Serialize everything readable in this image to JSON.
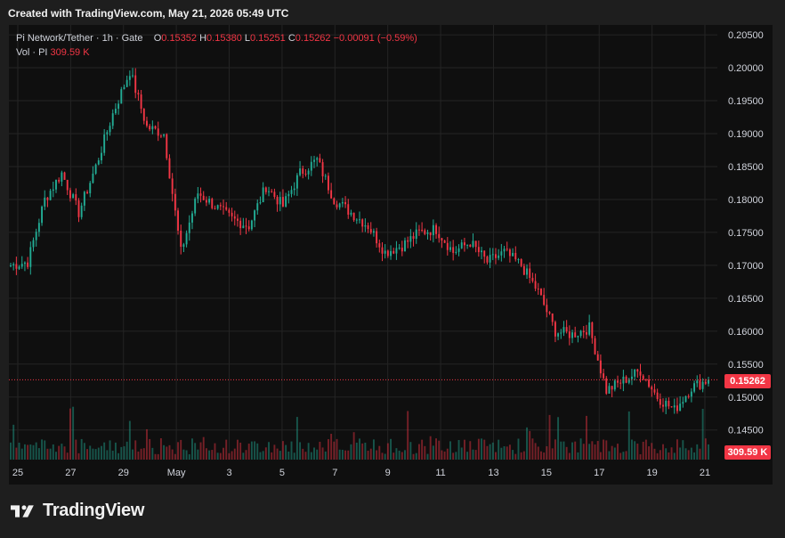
{
  "header": {
    "created_text": "Created with TradingView.com, May 21, 2026 05:49 UTC"
  },
  "legend": {
    "symbol_line": "Pi Network/Tether · 1h · Gate",
    "open_label": "O",
    "open_value": "0.15352",
    "high_label": "H",
    "high_value": "0.15380",
    "low_label": "L",
    "low_value": "0.15251",
    "close_label": "C",
    "close_value": "0.15262",
    "change": "−0.00091 (−0.59%)",
    "volume_label": "Vol · PI",
    "volume_value": "309.59 K"
  },
  "price_tag": "0.15262",
  "volume_tag": "309.59 K",
  "brand": {
    "name": "TradingView"
  },
  "colors": {
    "up": "#22ab94",
    "down": "#f23645",
    "grid": "#242424",
    "background": "#0f0f0f"
  },
  "chart_data": {
    "type": "candlestick",
    "title": "Pi Network/Tether · 1h · Gate",
    "ylim": [
      0.1405,
      0.2065
    ],
    "y_ticks": [
      "0.14500",
      "0.15000",
      "0.15500",
      "0.16000",
      "0.16500",
      "0.17000",
      "0.17500",
      "0.18000",
      "0.18500",
      "0.19000",
      "0.19500",
      "0.20000",
      "0.20500"
    ],
    "x_ticks": [
      "25",
      "27",
      "29",
      "May",
      "3",
      "5",
      "7",
      "9",
      "11",
      "13",
      "15",
      "17",
      "19",
      "21"
    ],
    "last_price": 0.15262,
    "price_series_approx": [
      {
        "t": "Apr 25",
        "close": 0.17
      },
      {
        "t": "Apr 26",
        "close": 0.1705
      },
      {
        "t": "Apr 26 12h",
        "close": 0.18
      },
      {
        "t": "Apr 27",
        "close": 0.184
      },
      {
        "t": "Apr 27 12h",
        "close": 0.178
      },
      {
        "t": "Apr 28",
        "close": 0.185
      },
      {
        "t": "Apr 28 12h",
        "close": 0.193
      },
      {
        "t": "Apr 29",
        "close": 0.1995
      },
      {
        "t": "Apr 29 12h",
        "close": 0.191
      },
      {
        "t": "Apr 30",
        "close": 0.19
      },
      {
        "t": "Apr 30 12h",
        "close": 0.172
      },
      {
        "t": "May 1",
        "close": 0.181
      },
      {
        "t": "May 2",
        "close": 0.179
      },
      {
        "t": "May 2 12h",
        "close": 0.177
      },
      {
        "t": "May 3",
        "close": 0.176
      },
      {
        "t": "May 4",
        "close": 0.182
      },
      {
        "t": "May 5",
        "close": 0.179
      },
      {
        "t": "May 6",
        "close": 0.184
      },
      {
        "t": "May 6 12h",
        "close": 0.186
      },
      {
        "t": "May 7",
        "close": 0.18
      },
      {
        "t": "May 7 12h",
        "close": 0.178
      },
      {
        "t": "May 8",
        "close": 0.176
      },
      {
        "t": "May 8 12h",
        "close": 0.172
      },
      {
        "t": "May 9",
        "close": 0.173
      },
      {
        "t": "May 10",
        "close": 0.175
      },
      {
        "t": "May 11",
        "close": 0.1755
      },
      {
        "t": "May 12",
        "close": 0.172
      },
      {
        "t": "May 13",
        "close": 0.1735
      },
      {
        "t": "May 14",
        "close": 0.1705
      },
      {
        "t": "May 15",
        "close": 0.172
      },
      {
        "t": "May 15 12h",
        "close": 0.17
      },
      {
        "t": "May 16",
        "close": 0.166
      },
      {
        "t": "May 16 12h",
        "close": 0.16
      },
      {
        "t": "May 17",
        "close": 0.1595
      },
      {
        "t": "May 17 12h",
        "close": 0.1605
      },
      {
        "t": "May 18",
        "close": 0.151
      },
      {
        "t": "May 18 12h",
        "close": 0.1525
      },
      {
        "t": "May 19",
        "close": 0.154
      },
      {
        "t": "May 19 12h",
        "close": 0.15
      },
      {
        "t": "May 20",
        "close": 0.148
      },
      {
        "t": "May 20 12h",
        "close": 0.1515
      },
      {
        "t": "May 21",
        "close": 0.15262
      }
    ],
    "grid": true,
    "legend_placement": "top-left"
  }
}
